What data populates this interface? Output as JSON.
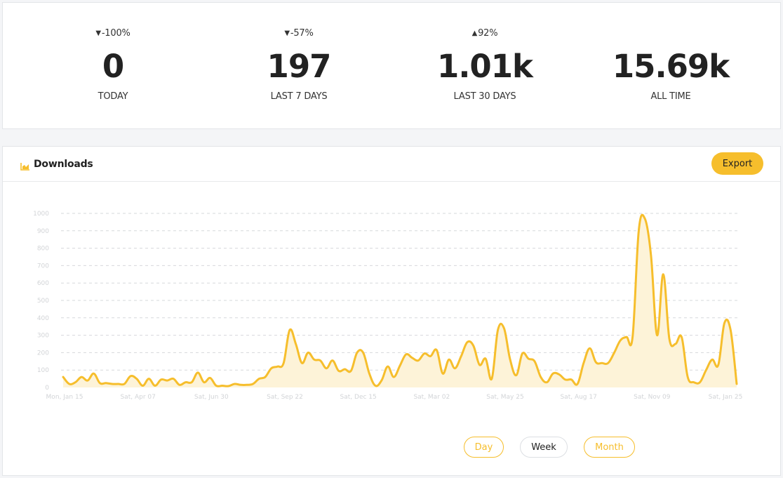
{
  "stats": [
    {
      "change": "-100%",
      "direction": "down",
      "value": "0",
      "label": "TODAY"
    },
    {
      "change": "-57%",
      "direction": "down",
      "value": "197",
      "label": "LAST 7 DAYS"
    },
    {
      "change": "92%",
      "direction": "up",
      "value": "1.01k",
      "label": "LAST 30 DAYS"
    },
    {
      "change": "",
      "direction": "",
      "value": "15.69k",
      "label": "ALL TIME"
    }
  ],
  "panel": {
    "title": "Downloads",
    "icon": "area-chart-icon",
    "export_label": "Export"
  },
  "period_buttons": {
    "day": "Day",
    "week": "Week",
    "month": "Month"
  },
  "colors": {
    "accent": "#f6be2c",
    "area_fill": "#fdf3d8",
    "line": "#f6be2c"
  },
  "chart_data": {
    "type": "area",
    "title": "",
    "xlabel": "",
    "ylabel": "",
    "ylim": [
      0,
      1000
    ],
    "y_ticks": [
      0,
      100,
      200,
      300,
      400,
      500,
      600,
      700,
      800,
      900,
      1000
    ],
    "x_tick_labels": [
      "Mon, Jan 15",
      "Sat, Apr 07",
      "Sat, Jun 30",
      "Sat, Sep 22",
      "Sat, Dec 15",
      "Sat, Mar 02",
      "Sat, May 25",
      "Sat, Aug 17",
      "Sat, Nov 09",
      "Sat, Jan 25"
    ],
    "grid": true,
    "series": [
      {
        "values": [
          60,
          20,
          30,
          60,
          40,
          80,
          25,
          25,
          20,
          20,
          20,
          65,
          50,
          10,
          50,
          10,
          45,
          40,
          50,
          15,
          30,
          30,
          85,
          30,
          55,
          10,
          10,
          8,
          20,
          15,
          15,
          20,
          50,
          60,
          110,
          120,
          140,
          330,
          250,
          140,
          200,
          160,
          155,
          110,
          155,
          95,
          105,
          95,
          200,
          200,
          80,
          10,
          40,
          120,
          60,
          125,
          190,
          170,
          155,
          195,
          180,
          215,
          80,
          160,
          110,
          180,
          260,
          240,
          130,
          165,
          50,
          330,
          340,
          160,
          70,
          195,
          165,
          150,
          60,
          30,
          80,
          75,
          45,
          45,
          20,
          140,
          225,
          145,
          140,
          140,
          200,
          270,
          290,
          290,
          900,
          970,
          760,
          300,
          650,
          280,
          250,
          290,
          60,
          30,
          30,
          100,
          160,
          130,
          370,
          330,
          20
        ]
      }
    ]
  }
}
